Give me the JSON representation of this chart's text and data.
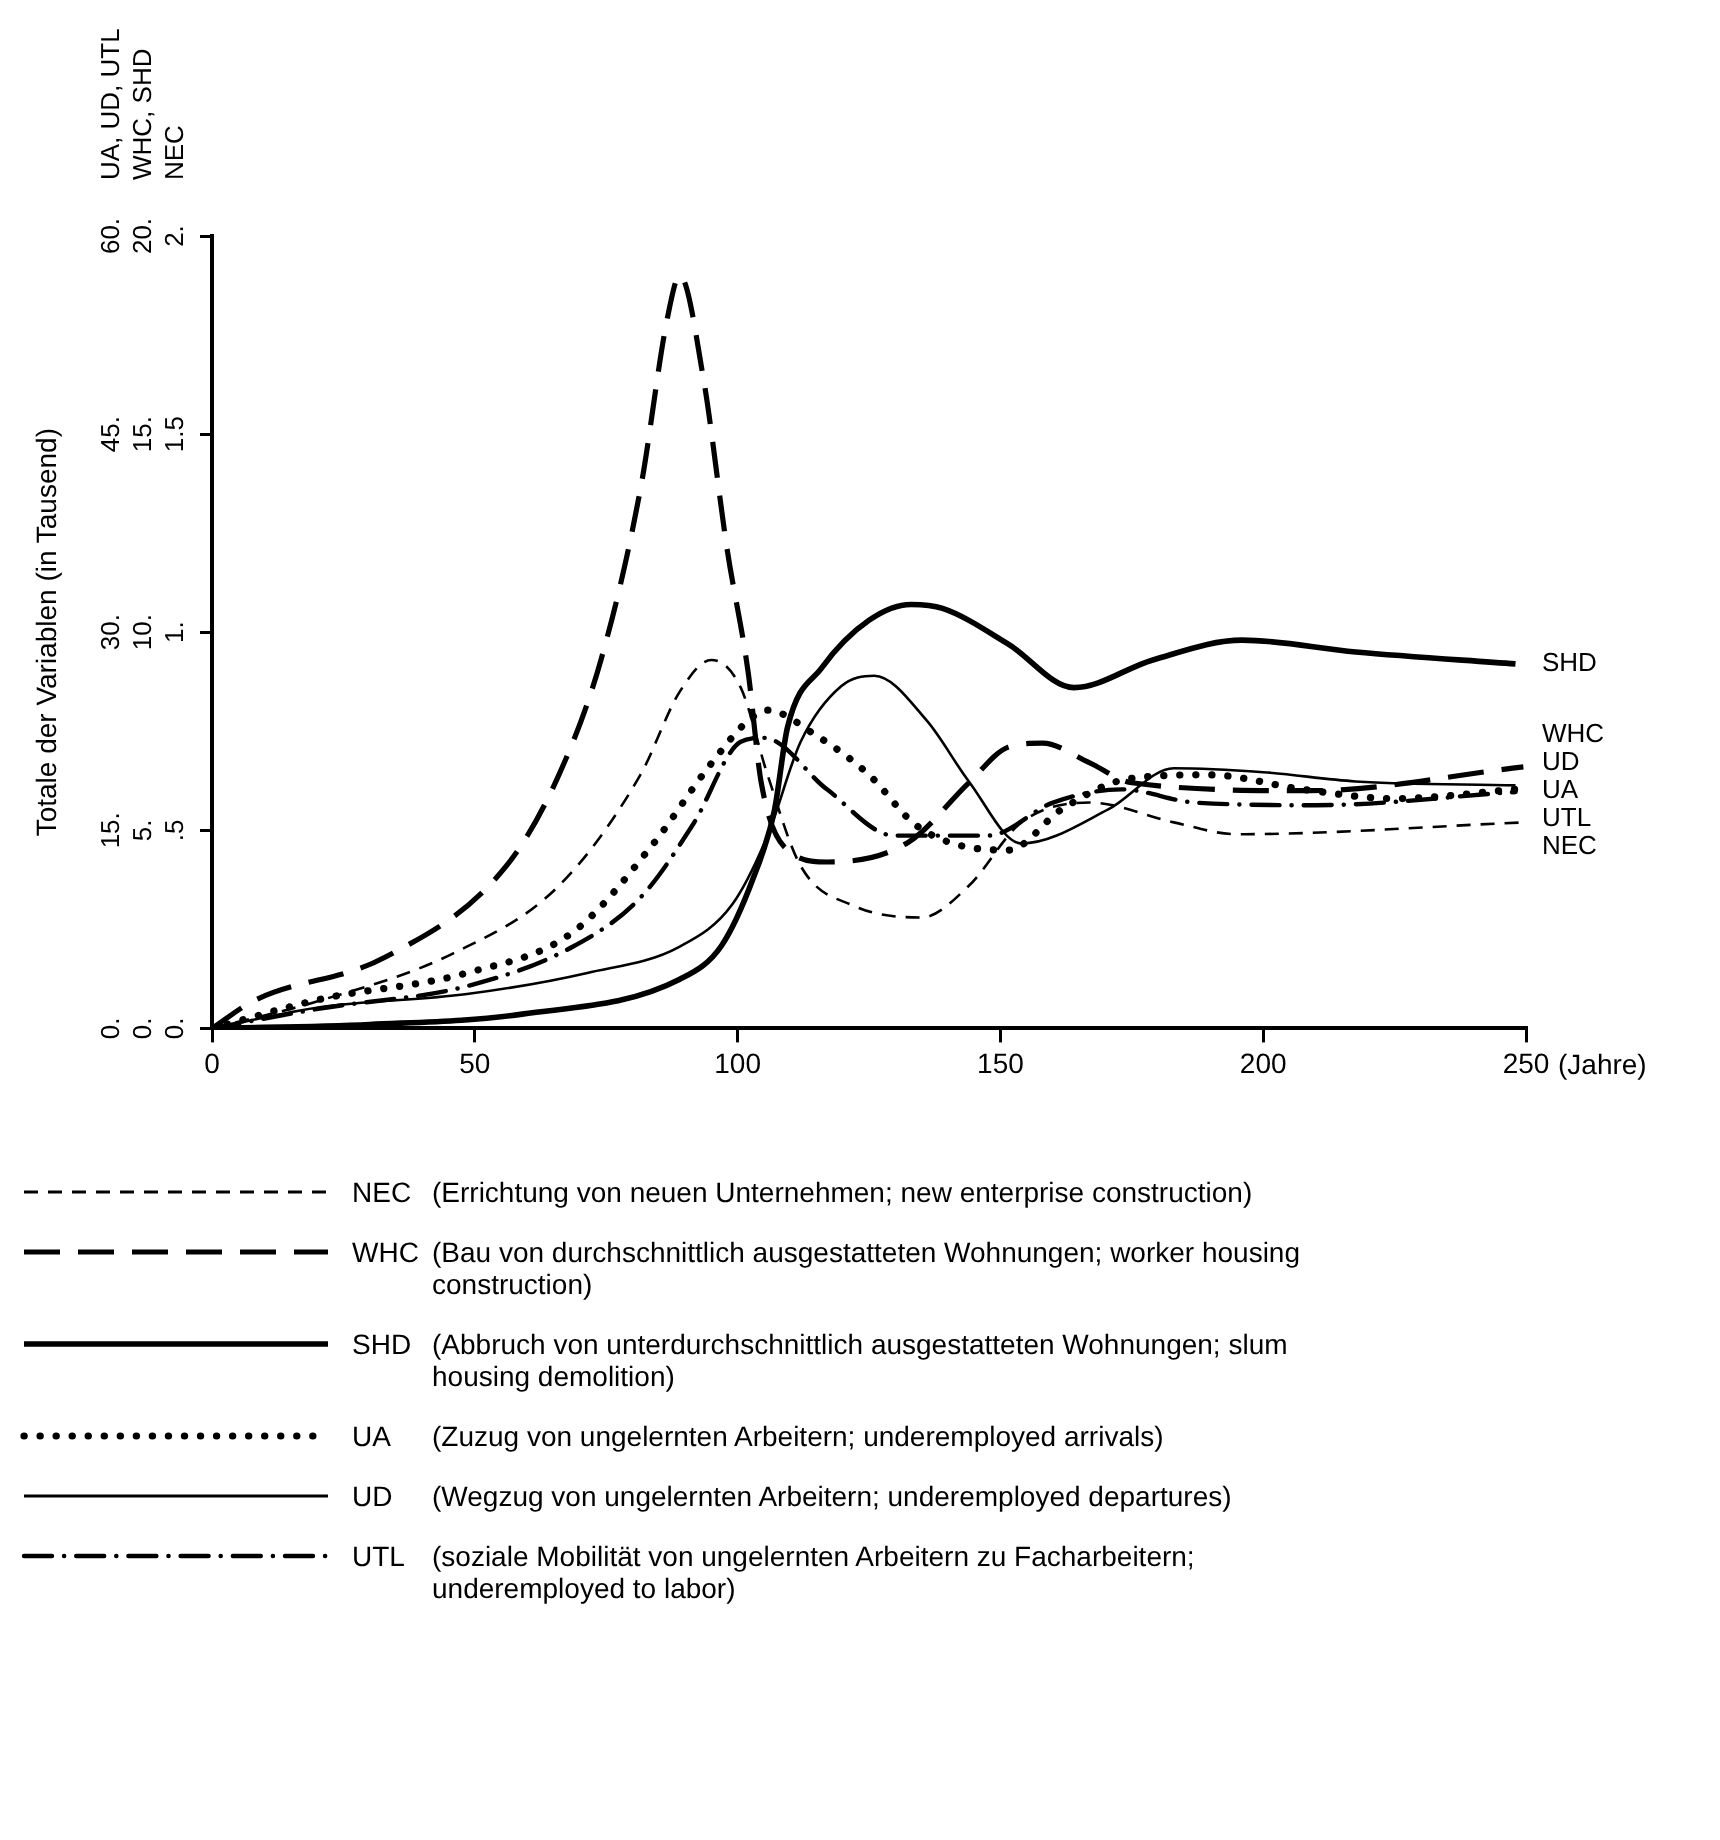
{
  "chart_data": {
    "type": "line",
    "xlabel": "(Jahre)",
    "ylabel": "Totale der Variablen (in Tausend)",
    "xlim": [
      0,
      250
    ],
    "xticks": [
      0,
      50,
      100,
      150,
      200,
      250
    ],
    "ylim": [
      0,
      60
    ],
    "yticks": [
      {
        "value": 0,
        "label": "0."
      },
      {
        "value": 15,
        "label": "15."
      },
      {
        "value": 30,
        "label": "30."
      },
      {
        "value": 45,
        "label": "45."
      },
      {
        "value": 60,
        "label": "60."
      }
    ],
    "y2lim": [
      0,
      20
    ],
    "y2ticks": [
      {
        "value": 0,
        "label": "0."
      },
      {
        "value": 5,
        "label": "5."
      },
      {
        "value": 10,
        "label": "10."
      },
      {
        "value": 15,
        "label": "15."
      },
      {
        "value": 20,
        "label": "20."
      }
    ],
    "y3lim": [
      0,
      2
    ],
    "y3ticks": [
      {
        "value": 0,
        "label": "0."
      },
      {
        "value": 0.5,
        "label": ".5"
      },
      {
        "value": 1,
        "label": "1."
      },
      {
        "value": 1.5,
        "label": "1.5"
      },
      {
        "value": 2,
        "label": "2."
      }
    ],
    "grid": false,
    "legend": "bottom",
    "marker": "none",
    "annotations": [
      "UA, UD, UTL",
      "WHC, SHD",
      "NEC",
      "(Errichtung von neuen Unternehmen; new enterprise construction)",
      "(Bau von durchschnittlich ausgestatteten Wohnungen; worker housing construction)",
      "(Abbruch von unterdurchschnittlich ausgestatteten Wohnungen; slum housing demolition)",
      "(Zuzug von ungelernten Arbeitern; underemployed arrivals)",
      "(Wegzug von ungelernten Arbeitern; underemployed departures)",
      "(soziale Mobilität von ungelernten Arbeitern zu Facharbeitern; underemployed to labor)"
    ],
    "series": [
      {
        "name": "NEC",
        "color": "#000000",
        "axis": "y3",
        "line_style": "dashed",
        "x": [
          0,
          20.5,
          46,
          66,
          81.5,
          89,
          95,
          100.6,
          105.7,
          112,
          122,
          135,
          144,
          154,
          167,
          183,
          195,
          249.5
        ],
        "values": [
          0,
          0.07,
          0.19,
          0.36,
          0.64,
          0.85,
          0.93,
          0.86,
          0.64,
          0.41,
          0.31,
          0.28,
          0.36,
          0.52,
          0.57,
          0.52,
          0.49,
          0.52
        ]
      },
      {
        "name": "WHC",
        "color": "#000000",
        "axis": "y2",
        "line_style": "longdashed",
        "x": [
          0,
          8,
          33,
          56,
          66,
          74,
          81.5,
          86.6,
          89,
          93.5,
          98,
          102,
          104.5,
          109.5,
          117,
          132.5,
          144,
          151.5,
          158,
          167,
          175,
          209,
          249.5
        ],
        "values": [
          0,
          0.7,
          1.8,
          4.1,
          6.4,
          9.3,
          13.6,
          17.9,
          19.0,
          16.4,
          12.1,
          9.0,
          6.2,
          4.5,
          4.2,
          4.7,
          6.2,
          7.1,
          7.2,
          6.7,
          6.2,
          6.0,
          6.6
        ]
      },
      {
        "name": "SHD",
        "color": "#000000",
        "axis": "y2",
        "line_style": "solid",
        "x": [
          0,
          30,
          59,
          89,
          97,
          103,
          107,
          109.5,
          116,
          125,
          133,
          139,
          151.5,
          164,
          179,
          196,
          217.6,
          248
        ],
        "values": [
          0,
          0.1,
          0.36,
          1.24,
          2.1,
          3.8,
          5.5,
          7.6,
          9.1,
          10.3,
          10.7,
          10.6,
          9.7,
          8.6,
          9.3,
          9.8,
          9.5,
          9.2
        ]
      },
      {
        "name": "UA",
        "color": "#000000",
        "line_style": "dotted",
        "x": [
          0,
          20.5,
          48.5,
          68.7,
          84,
          94.3,
          102,
          105.7,
          114.5,
          125,
          133.6,
          141,
          151.5,
          161.7,
          174.4,
          189.7,
          207.5,
          225,
          248
        ],
        "values": [
          0,
          2.2,
          4.2,
          7.3,
          14.0,
          19.7,
          23.3,
          24.1,
          22.3,
          19.2,
          15.5,
          14.0,
          13.5,
          16.6,
          18.9,
          19.2,
          18.1,
          17.4,
          18.1
        ]
      },
      {
        "name": "UD",
        "color": "#000000",
        "line_style": "solid",
        "x": [
          0,
          20.5,
          48.5,
          71.4,
          89,
          99,
          105.7,
          112,
          119.7,
          126,
          136,
          144,
          154,
          170.6,
          183,
          200,
          217.6,
          248
        ],
        "values": [
          0,
          1.6,
          2.6,
          4.2,
          6.2,
          9.4,
          14.6,
          21.7,
          25.9,
          26.7,
          23.3,
          18.7,
          14.0,
          16.6,
          19.7,
          19.4,
          18.7,
          18.4
        ]
      },
      {
        "name": "UTL",
        "color": "#000000",
        "line_style": "dashdot",
        "x": [
          0,
          20.5,
          48.5,
          68.7,
          81.5,
          91.6,
          100.6,
          105,
          117,
          129.8,
          147.7,
          160,
          173,
          187,
          210,
          248
        ],
        "values": [
          0,
          1.5,
          3.2,
          6.2,
          9.9,
          15.5,
          21.7,
          22.0,
          18.1,
          14.6,
          14.6,
          17.1,
          18.1,
          17.1,
          16.9,
          17.9
        ]
      }
    ]
  }
}
